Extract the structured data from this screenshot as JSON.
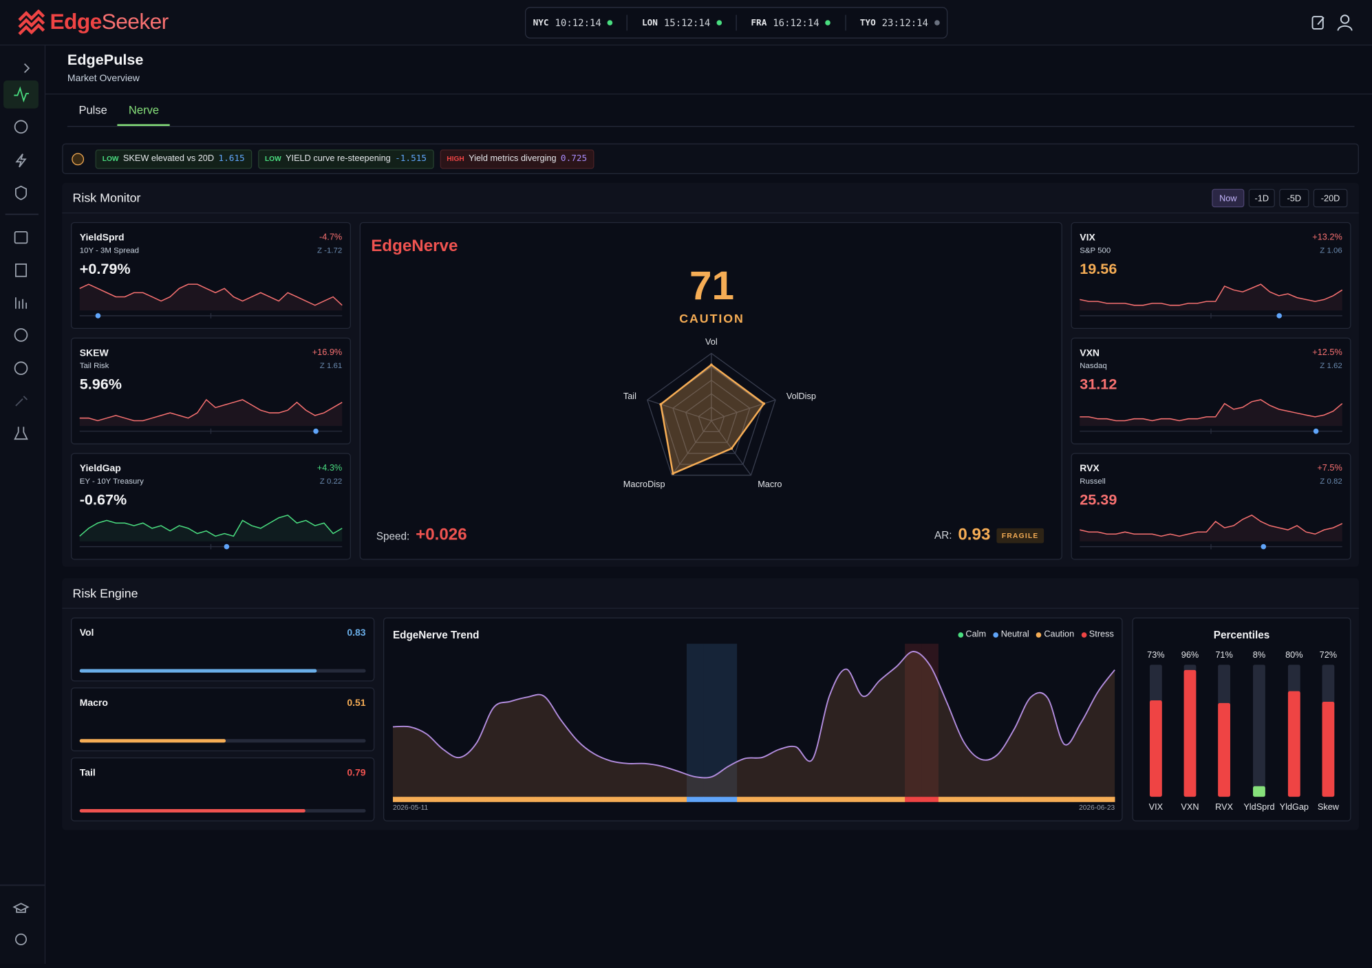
{
  "brand": {
    "part1": "Edge",
    "part2": "Seeker"
  },
  "clocks": [
    {
      "city": "NYC",
      "time": "10:12:14",
      "status_color": "#4ade80"
    },
    {
      "city": "LON",
      "time": "15:12:14",
      "status_color": "#4ade80"
    },
    {
      "city": "FRA",
      "time": "16:12:14",
      "status_color": "#4ade80"
    },
    {
      "city": "TYO",
      "time": "23:12:14",
      "status_color": "#6b7280"
    }
  ],
  "header": {
    "title": "EdgePulse",
    "subtitle": "Market Overview"
  },
  "tabs": {
    "items": [
      "Pulse",
      "Nerve"
    ],
    "active": 1
  },
  "alerts": [
    {
      "level": "LOW",
      "text": "SKEW elevated vs 20D",
      "value": 1.615,
      "level_color": "#4ade80",
      "value_color": "#60a5fa"
    },
    {
      "level": "LOW",
      "text": "YIELD curve re-steepening",
      "value": -1.515,
      "level_color": "#4ade80",
      "value_color": "#60a5fa"
    },
    {
      "level": "HIGH",
      "text": "Yield metrics diverging",
      "value": 0.725,
      "level_color": "#ef4444",
      "value_color": "#a78bfa"
    }
  ],
  "risk_monitor": {
    "title": "Risk Monitor",
    "periods": [
      "Now",
      "-1D",
      "-5D",
      "-20D"
    ],
    "active_period": 0,
    "left_cards": [
      {
        "name": "YieldSprd",
        "desc": "10Y - 3M Spread",
        "value": "+0.79%",
        "change": "-4.7%",
        "z": "Z -1.72",
        "value_color": "#f3f4f6",
        "change_color": "#f87171",
        "line_color": "#f87171",
        "spark": [
          5,
          6,
          5,
          4,
          3,
          3,
          4,
          4,
          3,
          2,
          3,
          5,
          6,
          6,
          5,
          4,
          5,
          3,
          2,
          3,
          4,
          3,
          2,
          4,
          3,
          2,
          1,
          2,
          3,
          1
        ],
        "range_position": 0.07
      },
      {
        "name": "SKEW",
        "desc": "Tail Risk",
        "value": "5.96%",
        "change": "+16.9%",
        "z": "Z 1.61",
        "value_color": "#f3f4f6",
        "change_color": "#f87171",
        "line_color": "#f87171",
        "spark": [
          2,
          2,
          1,
          2,
          3,
          2,
          1,
          1,
          2,
          3,
          4,
          3,
          2,
          4,
          9,
          6,
          7,
          8,
          9,
          7,
          5,
          4,
          4,
          5,
          8,
          5,
          3,
          4,
          6,
          8
        ],
        "range_position": 0.9
      },
      {
        "name": "YieldGap",
        "desc": "EY - 10Y Treasury",
        "value": "-0.67%",
        "change": "+4.3%",
        "z": "Z 0.22",
        "value_color": "#f3f4f6",
        "change_color": "#4ade80",
        "line_color": "#4ade80",
        "spark": [
          2,
          5,
          7,
          8,
          7,
          7,
          6,
          7,
          5,
          6,
          4,
          6,
          5,
          3,
          4,
          2,
          3,
          2,
          8,
          6,
          5,
          7,
          9,
          10,
          7,
          8,
          6,
          7,
          3,
          5
        ],
        "range_position": 0.56
      }
    ],
    "right_cards": [
      {
        "name": "VIX",
        "desc": "S&P 500",
        "value": "19.56",
        "change": "+13.2%",
        "z": "Z 1.06",
        "value_color": "#f6ad55",
        "change_color": "#f87171",
        "line_color": "#f87171",
        "spark": [
          4,
          3,
          3,
          2,
          2,
          2,
          1,
          1,
          2,
          2,
          1,
          1,
          2,
          2,
          3,
          3,
          11,
          9,
          8,
          10,
          12,
          8,
          6,
          7,
          5,
          4,
          3,
          4,
          6,
          9
        ],
        "range_position": 0.76
      },
      {
        "name": "VXN",
        "desc": "Nasdaq",
        "value": "31.12",
        "change": "+12.5%",
        "z": "Z 1.62",
        "value_color": "#f87171",
        "change_color": "#f87171",
        "line_color": "#f87171",
        "spark": [
          3,
          3,
          2,
          2,
          1,
          1,
          2,
          2,
          1,
          2,
          2,
          1,
          2,
          2,
          3,
          3,
          10,
          7,
          8,
          11,
          12,
          9,
          7,
          6,
          5,
          4,
          3,
          4,
          6,
          10
        ],
        "range_position": 0.9
      },
      {
        "name": "RVX",
        "desc": "Russell",
        "value": "25.39",
        "change": "+7.5%",
        "z": "Z 0.82",
        "value_color": "#f87171",
        "change_color": "#f87171",
        "line_color": "#f87171",
        "spark": [
          4,
          3,
          3,
          2,
          2,
          3,
          2,
          2,
          2,
          1,
          2,
          1,
          2,
          3,
          3,
          8,
          5,
          6,
          9,
          11,
          8,
          6,
          5,
          4,
          6,
          3,
          2,
          4,
          5,
          7
        ],
        "range_position": 0.7
      }
    ],
    "edgenerve": {
      "title": "EdgeNerve",
      "score": 71,
      "state": "CAUTION",
      "state_color": "#f6ad55",
      "radar": {
        "axes": [
          "Vol",
          "VolDisp",
          "Macro",
          "MacroDisp",
          "Tail"
        ],
        "values": [
          0.83,
          0.82,
          0.51,
          0.97,
          0.79
        ],
        "rlim": [
          0,
          1
        ],
        "color": "#f6ad55"
      },
      "speed_label": "Speed:",
      "speed": "+0.026",
      "ar_label": "AR:",
      "ar": 0.93,
      "ar_state": "FRAGILE"
    }
  },
  "risk_engine": {
    "title": "Risk Engine",
    "components": [
      {
        "name": "Vol",
        "value": 0.83,
        "color": "#6aaee8"
      },
      {
        "name": "Macro",
        "value": 0.51,
        "color": "#f6ad55"
      },
      {
        "name": "Tail",
        "value": 0.79,
        "color": "#ef5350"
      }
    ],
    "trend": {
      "title": "EdgeNerve Trend",
      "legend": [
        {
          "name": "Calm",
          "color": "#4ade80"
        },
        {
          "name": "Neutral",
          "color": "#60a5fa"
        },
        {
          "name": "Caution",
          "color": "#f6ad55"
        },
        {
          "name": "Stress",
          "color": "#ef4444"
        }
      ],
      "start_label": "2026-05-11",
      "end_label": "2026-06-23",
      "ylim": [
        0,
        100
      ],
      "line_color": "#b48ee0",
      "values": [
        45.7,
        45.7,
        41.1,
        30.9,
        25.7,
        35.4,
        58.3,
        62.3,
        65.1,
        65.7,
        50.3,
        36.6,
        28,
        23.4,
        21.7,
        21.7,
        20,
        16.6,
        13.1,
        13.1,
        20,
        25.1,
        25.7,
        30.9,
        32.6,
        24.6,
        65.7,
        83.4,
        65.7,
        76,
        85.1,
        94.9,
        85.7,
        61.7,
        36,
        24.6,
        27.4,
        44,
        65.1,
        64.6,
        34.3,
        48.6,
        68.6,
        82.9
      ],
      "regimes": [
        2,
        2,
        2,
        2,
        2,
        2,
        2,
        2,
        2,
        2,
        2,
        2,
        2,
        2,
        2,
        2,
        2,
        2,
        1,
        1,
        1,
        2,
        2,
        2,
        2,
        2,
        2,
        2,
        2,
        2,
        2,
        3,
        3,
        2,
        2,
        2,
        2,
        2,
        2,
        2,
        2,
        2,
        2,
        2
      ]
    },
    "percentiles": {
      "title": "Percentiles",
      "items": [
        {
          "label": "VIX",
          "value": 73,
          "value_label": "73%",
          "color": "#ef4444"
        },
        {
          "label": "VXN",
          "value": 96,
          "value_label": "96%",
          "color": "#ef4444"
        },
        {
          "label": "RVX",
          "value": 71,
          "value_label": "71%",
          "color": "#ef4444"
        },
        {
          "label": "YldSprd",
          "value": 8,
          "value_label": "8%",
          "color": "#86e07a"
        },
        {
          "label": "YldGap",
          "value": 80,
          "value_label": "80%",
          "color": "#ef4444"
        },
        {
          "label": "Skew",
          "value": 72,
          "value_label": "72%",
          "color": "#ef4444"
        }
      ]
    }
  }
}
